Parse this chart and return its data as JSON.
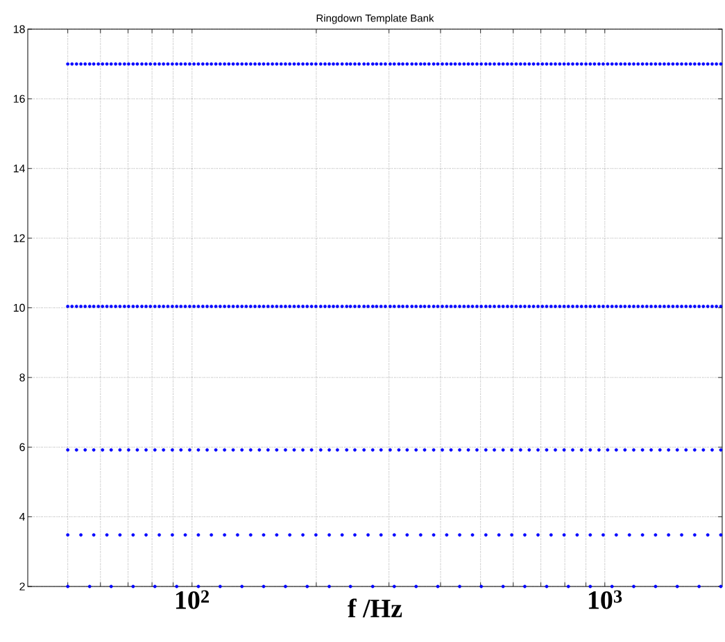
{
  "chart_data": {
    "type": "scatter",
    "title": "Ringdown Template Bank",
    "xlabel": "f /Hz",
    "log": "x",
    "grid": true,
    "xlim": [
      40,
      1925
    ],
    "ylim": [
      2,
      18
    ],
    "xticks": [
      {
        "value": 50,
        "label": null
      },
      {
        "value": 60,
        "label": null
      },
      {
        "value": 70,
        "label": null
      },
      {
        "value": 80,
        "label": null
      },
      {
        "value": 90,
        "label": null
      },
      {
        "value": 100,
        "label": "10$^{2}$"
      },
      {
        "value": 200,
        "label": null
      },
      {
        "value": 300,
        "label": null
      },
      {
        "value": 400,
        "label": null
      },
      {
        "value": 500,
        "label": null
      },
      {
        "value": 600,
        "label": null
      },
      {
        "value": 700,
        "label": null
      },
      {
        "value": 800,
        "label": null
      },
      {
        "value": 900,
        "label": null
      },
      {
        "value": 1000,
        "label": "10$^{3}$"
      }
    ],
    "yticks": [
      2,
      4,
      6,
      8,
      10,
      12,
      14,
      16,
      18
    ],
    "series": [
      {
        "color": "#0000ff",
        "x": [
          50,
          56.5,
          63.7,
          72.0,
          81.3,
          91.8,
          103.6,
          117.0,
          132.1,
          149.1,
          168.4,
          190.1,
          215,
          242,
          274,
          309,
          349,
          394,
          445,
          502,
          567,
          640,
          723,
          816,
          922,
          1041,
          1175,
          1327,
          1498,
          1692,
          1910
        ],
        "values": [
          2,
          2,
          2,
          2,
          2,
          2,
          2,
          2,
          2,
          2,
          2,
          2,
          2,
          2,
          2,
          2,
          2,
          2,
          2,
          2,
          2,
          2,
          2,
          2,
          2,
          2,
          2,
          2,
          2,
          2,
          2
        ]
      },
      {
        "color": "#0000ff",
        "x": [
          50,
          53.8,
          57.8,
          62.2,
          66.9,
          72.0,
          77.4,
          83.3,
          89.6,
          96.3,
          103.6,
          111.4,
          119.9,
          128.9,
          138.7,
          149.1,
          160.4,
          172.5,
          185.6,
          199.6,
          215,
          231,
          248,
          267,
          287,
          309,
          332,
          358,
          385,
          414,
          445,
          478,
          515,
          554,
          595,
          640,
          689,
          741,
          797,
          857,
          922,
          991,
          1066,
          1147,
          1234,
          1327,
          1427,
          1535,
          1651,
          1776,
          1910
        ],
        "values": [
          3.48,
          3.48,
          3.48,
          3.48,
          3.48,
          3.48,
          3.48,
          3.48,
          3.48,
          3.48,
          3.48,
          3.48,
          3.48,
          3.48,
          3.48,
          3.48,
          3.48,
          3.48,
          3.48,
          3.48,
          3.48,
          3.48,
          3.48,
          3.48,
          3.48,
          3.48,
          3.48,
          3.48,
          3.48,
          3.48,
          3.48,
          3.48,
          3.48,
          3.48,
          3.48,
          3.48,
          3.48,
          3.48,
          3.48,
          3.48,
          3.48,
          3.48,
          3.48,
          3.48,
          3.48,
          3.48,
          3.48,
          3.48,
          3.48,
          3.48,
          3.48
        ]
      },
      {
        "color": "#0000ff",
        "x": [
          50,
          52.5,
          55.1,
          57.8,
          60.7,
          63.7,
          66.9,
          70.2,
          73.7,
          77.4,
          81.3,
          85.3,
          89.6,
          94.0,
          98.7,
          103.6,
          108.8,
          114.2,
          119.9,
          125.8,
          132.1,
          138.7,
          145.6,
          152.8,
          160.4,
          168.4,
          176.8,
          185.6,
          194.8,
          205,
          215,
          225,
          237,
          248,
          261,
          274,
          287,
          302,
          317,
          332,
          349,
          366,
          385,
          404,
          424,
          445,
          467,
          490,
          515,
          540,
          567,
          595,
          625,
          656,
          689,
          723,
          759,
          797,
          836,
          878,
          922,
          968,
          1016,
          1066,
          1119,
          1175,
          1234,
          1295,
          1360,
          1427,
          1498,
          1573,
          1651,
          1733,
          1820,
          1910
        ],
        "values": [
          5.92,
          5.92,
          5.92,
          5.92,
          5.92,
          5.92,
          5.92,
          5.92,
          5.92,
          5.92,
          5.92,
          5.92,
          5.92,
          5.92,
          5.92,
          5.92,
          5.92,
          5.92,
          5.92,
          5.92,
          5.92,
          5.92,
          5.92,
          5.92,
          5.92,
          5.92,
          5.92,
          5.92,
          5.92,
          5.92,
          5.92,
          5.92,
          5.92,
          5.92,
          5.92,
          5.92,
          5.92,
          5.92,
          5.92,
          5.92,
          5.92,
          5.92,
          5.92,
          5.92,
          5.92,
          5.92,
          5.92,
          5.92,
          5.92,
          5.92,
          5.92,
          5.92,
          5.92,
          5.92,
          5.92,
          5.92,
          5.92,
          5.92,
          5.92,
          5.92,
          5.92,
          5.92,
          5.92,
          5.92,
          5.92,
          5.92,
          5.92,
          5.92,
          5.92,
          5.92,
          5.92,
          5.92,
          5.92,
          5.92,
          5.92,
          5.92
        ]
      },
      {
        "color": "#0000ff",
        "x": [
          50,
          51.2,
          52.5,
          53.8,
          55.1,
          56.5,
          57.8,
          59.3,
          60.7,
          62.2,
          63.7,
          65.3,
          66.9,
          68.6,
          70.2,
          72.0,
          73.7,
          75.6,
          77.4,
          79.3,
          81.3,
          83.3,
          85.3,
          87.4,
          89.6,
          91.8,
          94.0,
          96.3,
          98.7,
          101.1,
          103.6,
          106.2,
          108.8,
          111.4,
          114.2,
          117.0,
          119.9,
          122.8,
          125.8,
          128.9,
          132.1,
          135.3,
          138.7,
          142.1,
          145.6,
          149.1,
          152.8,
          156.6,
          160.4,
          164.4,
          168.4,
          172.5,
          176.8,
          181.1,
          185.6,
          190.1,
          194.8,
          199.6,
          205,
          210,
          215,
          220,
          225,
          231,
          237,
          242,
          248,
          254,
          261,
          267,
          274,
          280,
          287,
          294,
          302,
          309,
          317,
          324,
          332,
          341,
          349,
          358,
          366,
          375,
          385,
          394,
          404,
          414,
          424,
          434,
          445,
          456,
          467,
          478,
          490,
          502,
          515,
          527,
          540,
          554,
          567,
          581,
          595,
          610,
          625,
          640,
          656,
          672,
          689,
          706,
          723,
          741,
          759,
          778,
          797,
          816,
          836,
          857,
          878,
          900,
          922,
          944,
          968,
          991,
          1016,
          1041,
          1066,
          1093,
          1119,
          1147,
          1175,
          1204,
          1234,
          1264,
          1295,
          1327,
          1360,
          1393,
          1427,
          1462,
          1498,
          1535,
          1573,
          1612,
          1651,
          1692,
          1733,
          1776,
          1820,
          1864,
          1910
        ],
        "values": [
          10.04,
          10.04,
          10.04,
          10.04,
          10.04,
          10.04,
          10.04,
          10.04,
          10.04,
          10.04,
          10.04,
          10.04,
          10.04,
          10.04,
          10.04,
          10.04,
          10.04,
          10.04,
          10.04,
          10.04,
          10.04,
          10.04,
          10.04,
          10.04,
          10.04,
          10.04,
          10.04,
          10.04,
          10.04,
          10.04,
          10.04,
          10.04,
          10.04,
          10.04,
          10.04,
          10.04,
          10.04,
          10.04,
          10.04,
          10.04,
          10.04,
          10.04,
          10.04,
          10.04,
          10.04,
          10.04,
          10.04,
          10.04,
          10.04,
          10.04,
          10.04,
          10.04,
          10.04,
          10.04,
          10.04,
          10.04,
          10.04,
          10.04,
          10.04,
          10.04,
          10.04,
          10.04,
          10.04,
          10.04,
          10.04,
          10.04,
          10.04,
          10.04,
          10.04,
          10.04,
          10.04,
          10.04,
          10.04,
          10.04,
          10.04,
          10.04,
          10.04,
          10.04,
          10.04,
          10.04,
          10.04,
          10.04,
          10.04,
          10.04,
          10.04,
          10.04,
          10.04,
          10.04,
          10.04,
          10.04,
          10.04,
          10.04,
          10.04,
          10.04,
          10.04,
          10.04,
          10.04,
          10.04,
          10.04,
          10.04,
          10.04,
          10.04,
          10.04,
          10.04,
          10.04,
          10.04,
          10.04,
          10.04,
          10.04,
          10.04,
          10.04,
          10.04,
          10.04,
          10.04,
          10.04,
          10.04,
          10.04,
          10.04,
          10.04,
          10.04,
          10.04,
          10.04,
          10.04,
          10.04,
          10.04,
          10.04,
          10.04,
          10.04,
          10.04,
          10.04,
          10.04,
          10.04,
          10.04,
          10.04,
          10.04,
          10.04,
          10.04,
          10.04,
          10.04,
          10.04,
          10.04,
          10.04,
          10.04,
          10.04,
          10.04,
          10.04,
          10.04,
          10.04,
          10.04,
          10.04,
          10.04
        ]
      },
      {
        "color": "#0000ff",
        "x": [
          50,
          51.2,
          52.5,
          53.8,
          55.1,
          56.5,
          57.8,
          59.3,
          60.7,
          62.2,
          63.7,
          65.3,
          66.9,
          68.6,
          70.2,
          72.0,
          73.7,
          75.6,
          77.4,
          79.3,
          81.3,
          83.3,
          85.3,
          87.4,
          89.6,
          91.8,
          94.0,
          96.3,
          98.7,
          101.1,
          103.6,
          106.2,
          108.8,
          111.4,
          114.2,
          117.0,
          119.9,
          122.8,
          125.8,
          128.9,
          132.1,
          135.3,
          138.7,
          142.1,
          145.6,
          149.1,
          152.8,
          156.6,
          160.4,
          164.4,
          168.4,
          172.5,
          176.8,
          181.1,
          185.6,
          190.1,
          194.8,
          199.6,
          205,
          210,
          215,
          220,
          225,
          231,
          237,
          242,
          248,
          254,
          261,
          267,
          274,
          280,
          287,
          294,
          302,
          309,
          317,
          324,
          332,
          341,
          349,
          358,
          366,
          375,
          385,
          394,
          404,
          414,
          424,
          434,
          445,
          456,
          467,
          478,
          490,
          502,
          515,
          527,
          540,
          554,
          567,
          581,
          595,
          610,
          625,
          640,
          656,
          672,
          689,
          706,
          723,
          741,
          759,
          778,
          797,
          816,
          836,
          857,
          878,
          900,
          922,
          944,
          968,
          991,
          1016,
          1041,
          1066,
          1093,
          1119,
          1147,
          1175,
          1204,
          1234,
          1264,
          1295,
          1327,
          1360,
          1393,
          1427,
          1462,
          1498,
          1535,
          1573,
          1612,
          1651,
          1692,
          1733,
          1776,
          1820,
          1864,
          1910
        ],
        "values": [
          17,
          17,
          17,
          17,
          17,
          17,
          17,
          17,
          17,
          17,
          17,
          17,
          17,
          17,
          17,
          17,
          17,
          17,
          17,
          17,
          17,
          17,
          17,
          17,
          17,
          17,
          17,
          17,
          17,
          17,
          17,
          17,
          17,
          17,
          17,
          17,
          17,
          17,
          17,
          17,
          17,
          17,
          17,
          17,
          17,
          17,
          17,
          17,
          17,
          17,
          17,
          17,
          17,
          17,
          17,
          17,
          17,
          17,
          17,
          17,
          17,
          17,
          17,
          17,
          17,
          17,
          17,
          17,
          17,
          17,
          17,
          17,
          17,
          17,
          17,
          17,
          17,
          17,
          17,
          17,
          17,
          17,
          17,
          17,
          17,
          17,
          17,
          17,
          17,
          17,
          17,
          17,
          17,
          17,
          17,
          17,
          17,
          17,
          17,
          17,
          17,
          17,
          17,
          17,
          17,
          17,
          17,
          17,
          17,
          17,
          17,
          17,
          17,
          17,
          17,
          17,
          17,
          17,
          17,
          17,
          17,
          17,
          17,
          17,
          17,
          17,
          17,
          17,
          17,
          17,
          17,
          17,
          17,
          17,
          17,
          17,
          17,
          17,
          17,
          17,
          17,
          17,
          17,
          17,
          17,
          17,
          17,
          17,
          17,
          17,
          17
        ]
      }
    ]
  }
}
